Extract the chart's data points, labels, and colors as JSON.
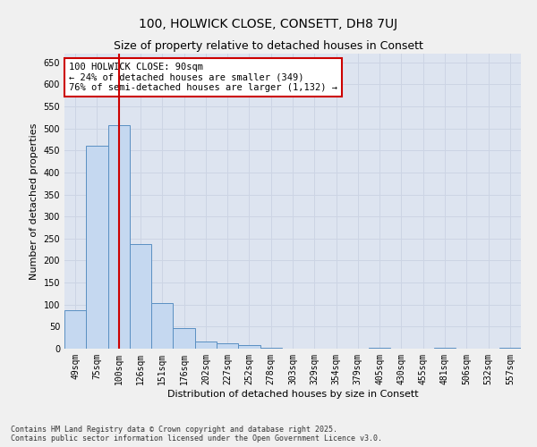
{
  "title": "100, HOLWICK CLOSE, CONSETT, DH8 7UJ",
  "subtitle": "Size of property relative to detached houses in Consett",
  "xlabel": "Distribution of detached houses by size in Consett",
  "ylabel": "Number of detached properties",
  "categories": [
    "49sqm",
    "75sqm",
    "100sqm",
    "126sqm",
    "151sqm",
    "176sqm",
    "202sqm",
    "227sqm",
    "252sqm",
    "278sqm",
    "303sqm",
    "329sqm",
    "354sqm",
    "379sqm",
    "405sqm",
    "430sqm",
    "455sqm",
    "481sqm",
    "506sqm",
    "532sqm",
    "557sqm"
  ],
  "values": [
    88,
    460,
    507,
    238,
    104,
    47,
    17,
    13,
    8,
    2,
    0,
    0,
    0,
    0,
    2,
    0,
    0,
    2,
    0,
    0,
    2
  ],
  "bar_color": "#c5d8f0",
  "bar_edge_color": "#5a8fc2",
  "marker_index": 2,
  "marker_color": "#cc0000",
  "annotation_line1": "100 HOLWICK CLOSE: 90sqm",
  "annotation_line2": "← 24% of detached houses are smaller (349)",
  "annotation_line3": "76% of semi-detached houses are larger (1,132) →",
  "annotation_box_color": "#ffffff",
  "annotation_box_edge_color": "#cc0000",
  "ylim": [
    0,
    670
  ],
  "yticks": [
    0,
    50,
    100,
    150,
    200,
    250,
    300,
    350,
    400,
    450,
    500,
    550,
    600,
    650
  ],
  "grid_color": "#ccd4e4",
  "background_color": "#dde4f0",
  "footer_text": "Contains HM Land Registry data © Crown copyright and database right 2025.\nContains public sector information licensed under the Open Government Licence v3.0.",
  "title_fontsize": 10,
  "subtitle_fontsize": 9,
  "axis_label_fontsize": 8,
  "tick_fontsize": 7,
  "annotation_fontsize": 7.5
}
